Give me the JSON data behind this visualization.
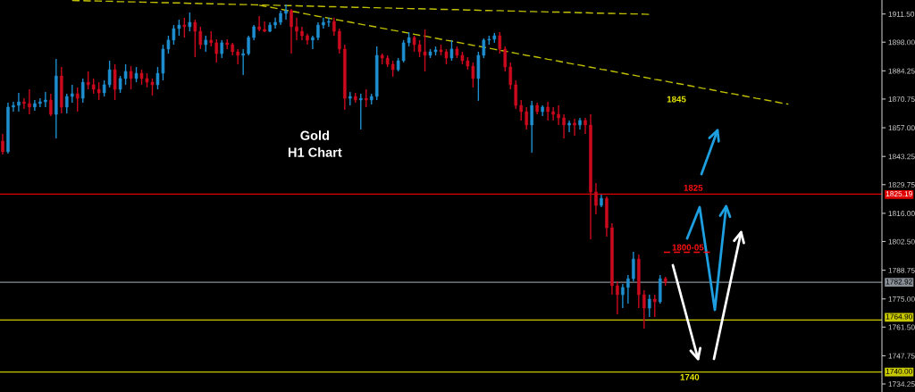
{
  "chart_data": {
    "type": "candlestick",
    "title": "Gold\nH1 Chart",
    "categories": [
      null,
      null,
      null,
      null,
      null,
      null,
      null,
      null,
      null,
      null,
      null,
      null,
      null,
      null,
      null,
      null,
      null,
      null,
      null,
      null,
      null,
      null,
      null,
      null,
      null,
      null,
      null,
      null,
      null,
      null,
      null,
      null,
      null,
      null,
      null,
      null,
      null,
      null,
      null,
      null,
      null,
      null,
      null,
      null,
      null,
      null,
      null,
      null,
      null,
      null,
      null,
      null,
      null,
      null,
      null,
      null,
      null,
      null,
      null,
      null,
      null,
      null,
      null,
      null,
      null,
      null,
      null,
      null,
      null,
      null,
      null,
      null,
      null,
      null,
      null,
      null,
      null,
      null,
      null,
      null,
      null,
      null,
      null,
      null,
      null,
      null,
      null,
      null,
      null,
      null,
      null,
      null,
      null,
      null,
      null,
      null,
      null,
      null,
      null,
      null,
      null,
      null,
      null,
      null,
      null,
      null,
      null,
      null,
      null,
      null,
      null,
      null,
      null,
      null,
      null,
      null,
      null,
      null,
      null,
      null,
      null,
      null,
      null,
      null,
      null,
      null,
      null,
      null,
      null,
      null,
      null,
      null,
      null,
      null,
      null,
      null,
      null,
      null,
      null,
      null,
      null,
      null,
      null,
      null,
      null,
      null,
      null,
      null,
      null,
      null,
      null,
      null,
      null,
      null,
      null,
      null,
      null,
      null,
      null,
      null,
      null,
      null,
      null,
      null,
      null
    ],
    "ohlc": [
      [
        1850.6,
        1854.0,
        1844.2,
        1845.5
      ],
      [
        1845.5,
        1869.0,
        1844.6,
        1866.9
      ],
      [
        1866.9,
        1869.4,
        1864.7,
        1867.7
      ],
      [
        1867.7,
        1873.7,
        1864.7,
        1869.4
      ],
      [
        1869.4,
        1871.1,
        1866.0,
        1868.6
      ],
      [
        1868.6,
        1875.4,
        1863.4,
        1866.9
      ],
      [
        1866.9,
        1870.3,
        1865.2,
        1868.6
      ],
      [
        1868.6,
        1871.1,
        1866.9,
        1869.4
      ],
      [
        1869.4,
        1874.1,
        1866.9,
        1870.3
      ],
      [
        1870.3,
        1873.3,
        1862.6,
        1863.4
      ],
      [
        1863.4,
        1890.0,
        1851.9,
        1881.8
      ],
      [
        1881.8,
        1886.1,
        1863.9,
        1866.9
      ],
      [
        1866.9,
        1873.3,
        1863.9,
        1872.0
      ],
      [
        1872.0,
        1877.6,
        1869.0,
        1873.3
      ],
      [
        1873.3,
        1876.3,
        1864.7,
        1871.1
      ],
      [
        1871.1,
        1880.6,
        1869.0,
        1878.8
      ],
      [
        1878.8,
        1884.0,
        1875.4,
        1877.6
      ],
      [
        1877.6,
        1880.6,
        1873.3,
        1875.4
      ],
      [
        1875.4,
        1878.8,
        1870.3,
        1873.7
      ],
      [
        1873.7,
        1879.7,
        1872.0,
        1877.6
      ],
      [
        1877.6,
        1889.1,
        1876.3,
        1884.8
      ],
      [
        1884.8,
        1887.4,
        1870.3,
        1875.4
      ],
      [
        1875.4,
        1881.8,
        1873.7,
        1880.6
      ],
      [
        1880.6,
        1887.4,
        1877.6,
        1884.0
      ],
      [
        1884.0,
        1886.5,
        1875.4,
        1880.6
      ],
      [
        1880.6,
        1886.1,
        1878.8,
        1883.1
      ],
      [
        1883.1,
        1884.8,
        1877.6,
        1880.6
      ],
      [
        1880.6,
        1883.1,
        1876.3,
        1878.8
      ],
      [
        1878.8,
        1880.6,
        1872.4,
        1877.6
      ],
      [
        1877.6,
        1886.1,
        1875.4,
        1883.1
      ],
      [
        1883.1,
        1896.8,
        1879.7,
        1894.7
      ],
      [
        1894.7,
        1901.1,
        1892.5,
        1899.0
      ],
      [
        1899.0,
        1906.2,
        1896.8,
        1904.5
      ],
      [
        1904.5,
        1908.8,
        1901.1,
        1906.2
      ],
      [
        1906.2,
        1909.7,
        1900.2,
        1905.4
      ],
      [
        1905.4,
        1912.2,
        1903.2,
        1907.5
      ],
      [
        1907.5,
        1908.8,
        1890.8,
        1903.2
      ],
      [
        1903.2,
        1905.4,
        1894.7,
        1896.8
      ],
      [
        1896.8,
        1901.1,
        1893.4,
        1899.0
      ],
      [
        1899.0,
        1903.2,
        1896.0,
        1897.7
      ],
      [
        1897.7,
        1899.4,
        1888.3,
        1892.5
      ],
      [
        1892.5,
        1899.0,
        1890.4,
        1897.7
      ],
      [
        1897.7,
        1899.4,
        1894.7,
        1896.8
      ],
      [
        1896.8,
        1897.7,
        1891.7,
        1893.4
      ],
      [
        1893.4,
        1894.7,
        1887.4,
        1891.7
      ],
      [
        1891.7,
        1894.7,
        1882.3,
        1892.5
      ],
      [
        1892.5,
        1901.1,
        1891.7,
        1900.2
      ],
      [
        1900.2,
        1906.2,
        1899.0,
        1905.4
      ],
      [
        1905.4,
        1910.5,
        1903.2,
        1904.1
      ],
      [
        1904.1,
        1907.9,
        1902.8,
        1903.2
      ],
      [
        1903.2,
        1907.5,
        1902.8,
        1906.2
      ],
      [
        1906.2,
        1909.7,
        1904.5,
        1907.5
      ],
      [
        1907.5,
        1913.1,
        1906.2,
        1911.8
      ],
      [
        1911.8,
        1916.1,
        1908.8,
        1913.1
      ],
      [
        1913.1,
        1913.9,
        1892.5,
        1905.4
      ],
      [
        1905.4,
        1909.7,
        1899.0,
        1903.2
      ],
      [
        1903.2,
        1905.4,
        1899.0,
        1901.1
      ],
      [
        1901.1,
        1902.0,
        1896.8,
        1899.0
      ],
      [
        1899.0,
        1901.1,
        1894.7,
        1900.2
      ],
      [
        1900.2,
        1907.5,
        1899.0,
        1906.2
      ],
      [
        1906.2,
        1909.7,
        1904.5,
        1907.5
      ],
      [
        1907.5,
        1909.7,
        1905.4,
        1907.9
      ],
      [
        1907.9,
        1909.7,
        1901.1,
        1903.2
      ],
      [
        1903.2,
        1904.5,
        1892.5,
        1894.7
      ],
      [
        1894.7,
        1896.8,
        1865.6,
        1871.1
      ],
      [
        1871.1,
        1874.1,
        1867.7,
        1872.0
      ],
      [
        1872.0,
        1873.7,
        1869.0,
        1870.3
      ],
      [
        1870.3,
        1873.3,
        1856.2,
        1871.1
      ],
      [
        1871.1,
        1875.4,
        1866.9,
        1870.3
      ],
      [
        1870.3,
        1873.3,
        1868.2,
        1872.0
      ],
      [
        1872.0,
        1896.0,
        1870.3,
        1891.7
      ],
      [
        1891.7,
        1892.5,
        1887.4,
        1890.4
      ],
      [
        1890.4,
        1891.7,
        1886.1,
        1887.4
      ],
      [
        1887.4,
        1889.1,
        1881.4,
        1884.8
      ],
      [
        1884.8,
        1890.4,
        1884.0,
        1889.1
      ],
      [
        1889.1,
        1899.0,
        1888.3,
        1897.7
      ],
      [
        1897.7,
        1902.8,
        1896.0,
        1900.2
      ],
      [
        1900.2,
        1901.1,
        1893.4,
        1896.8
      ],
      [
        1896.8,
        1899.0,
        1890.8,
        1893.4
      ],
      [
        1893.4,
        1904.1,
        1884.0,
        1891.7
      ],
      [
        1891.7,
        1894.7,
        1890.4,
        1893.4
      ],
      [
        1893.4,
        1896.0,
        1891.7,
        1894.3
      ],
      [
        1894.3,
        1896.8,
        1891.7,
        1893.4
      ],
      [
        1893.4,
        1894.7,
        1887.4,
        1890.4
      ],
      [
        1890.4,
        1899.0,
        1889.1,
        1894.7
      ],
      [
        1894.7,
        1896.0,
        1890.4,
        1891.7
      ],
      [
        1891.7,
        1893.4,
        1887.4,
        1889.1
      ],
      [
        1889.1,
        1890.8,
        1884.8,
        1886.5
      ],
      [
        1886.5,
        1888.3,
        1876.3,
        1880.6
      ],
      [
        1880.6,
        1893.4,
        1869.9,
        1891.7
      ],
      [
        1891.7,
        1899.8,
        1890.4,
        1899.0
      ],
      [
        1899.0,
        1901.1,
        1896.8,
        1899.4
      ],
      [
        1899.4,
        1902.4,
        1897.7,
        1901.1
      ],
      [
        1901.1,
        1902.8,
        1892.5,
        1894.7
      ],
      [
        1894.7,
        1896.0,
        1884.0,
        1886.1
      ],
      [
        1886.1,
        1888.3,
        1875.4,
        1877.6
      ],
      [
        1877.6,
        1879.7,
        1866.0,
        1867.7
      ],
      [
        1867.7,
        1870.3,
        1860.5,
        1864.7
      ],
      [
        1864.7,
        1866.9,
        1856.2,
        1858.3
      ],
      [
        1858.3,
        1869.9,
        1845.1,
        1867.7
      ],
      [
        1867.7,
        1869.0,
        1863.4,
        1864.7
      ],
      [
        1864.7,
        1867.7,
        1862.6,
        1866.9
      ],
      [
        1866.9,
        1869.4,
        1860.5,
        1864.7
      ],
      [
        1864.7,
        1866.9,
        1860.5,
        1863.4
      ],
      [
        1863.4,
        1867.7,
        1858.3,
        1861.7
      ],
      [
        1861.7,
        1863.4,
        1851.9,
        1858.3
      ],
      [
        1858.3,
        1860.5,
        1854.9,
        1859.2
      ],
      [
        1859.2,
        1861.3,
        1853.2,
        1858.3
      ],
      [
        1858.3,
        1861.7,
        1856.2,
        1860.5
      ],
      [
        1860.5,
        1861.7,
        1854.0,
        1858.3
      ],
      [
        1858.3,
        1863.4,
        1803.6,
        1826.2
      ],
      [
        1826.2,
        1830.5,
        1815.5,
        1819.8
      ],
      [
        1819.8,
        1824.9,
        1819.0,
        1823.2
      ],
      [
        1823.2,
        1824.1,
        1804.8,
        1809.1
      ],
      [
        1809.1,
        1811.3,
        1777.0,
        1781.3
      ],
      [
        1781.3,
        1783.4,
        1767.6,
        1777.0
      ],
      [
        1777.0,
        1782.2,
        1770.6,
        1780.5
      ],
      [
        1780.5,
        1786.4,
        1772.8,
        1784.7
      ],
      [
        1784.7,
        1797.6,
        1783.4,
        1794.1
      ],
      [
        1794.1,
        1796.3,
        1770.6,
        1777.0
      ],
      [
        1777.0,
        1779.2,
        1760.8,
        1770.6
      ],
      [
        1770.6,
        1777.0,
        1766.3,
        1774.9
      ],
      [
        1774.9,
        1777.0,
        1766.3,
        1773.6
      ],
      [
        1773.6,
        1786.4,
        1772.8,
        1784.7
      ],
      [
        1784.7,
        1785.6,
        1781.3,
        1783.0
      ],
      null,
      null,
      null,
      null,
      null,
      null,
      null,
      null,
      null,
      null,
      null,
      null,
      null,
      null,
      null,
      null,
      null,
      null,
      null,
      null,
      null,
      null,
      null,
      null,
      null,
      null,
      null,
      null,
      null,
      null,
      null,
      null,
      null,
      null,
      null,
      null,
      null,
      null,
      null,
      null
    ],
    "colors": [
      "#cc0a1e",
      "#1e8fd0",
      "#1e8fd0",
      "#1e8fd0",
      "#cc0a1e",
      "#cc0a1e",
      "#1e8fd0",
      "#1e8fd0",
      "#1e8fd0",
      "#cc0a1e",
      "#1e8fd0",
      "#cc0a1e",
      "#1e8fd0",
      "#1e8fd0",
      "#cc0a1e",
      "#1e8fd0",
      "#cc0a1e",
      "#cc0a1e",
      "#cc0a1e",
      "#1e8fd0",
      "#1e8fd0",
      "#cc0a1e",
      "#1e8fd0",
      "#1e8fd0",
      "#cc0a1e",
      "#1e8fd0",
      "#cc0a1e",
      "#cc0a1e",
      "#cc0a1e",
      "#1e8fd0",
      "#1e8fd0",
      "#1e8fd0",
      "#1e8fd0",
      "#1e8fd0",
      "#cc0a1e",
      "#1e8fd0",
      "#cc0a1e",
      "#cc0a1e",
      "#1e8fd0",
      "#cc0a1e",
      "#cc0a1e",
      "#1e8fd0",
      "#cc0a1e",
      "#cc0a1e",
      "#cc0a1e",
      "#1e8fd0",
      "#1e8fd0",
      "#1e8fd0",
      "#cc0a1e",
      "#cc0a1e",
      "#1e8fd0",
      "#1e8fd0",
      "#1e8fd0",
      "#1e8fd0",
      "#cc0a1e",
      "#cc0a1e",
      "#cc0a1e",
      "#cc0a1e",
      "#1e8fd0",
      "#1e8fd0",
      "#1e8fd0",
      "#1e8fd0",
      "#cc0a1e",
      "#cc0a1e",
      "#cc0a1e",
      "#1e8fd0",
      "#cc0a1e",
      "#1e8fd0",
      "#cc0a1e",
      "#1e8fd0",
      "#1e8fd0",
      "#cc0a1e",
      "#cc0a1e",
      "#cc0a1e",
      "#1e8fd0",
      "#1e8fd0",
      "#1e8fd0",
      "#cc0a1e",
      "#cc0a1e",
      "#cc0a1e",
      "#1e8fd0",
      "#1e8fd0",
      "#cc0a1e",
      "#cc0a1e",
      "#1e8fd0",
      "#cc0a1e",
      "#cc0a1e",
      "#cc0a1e",
      "#cc0a1e",
      "#1e8fd0",
      "#1e8fd0",
      "#1e8fd0",
      "#1e8fd0",
      "#cc0a1e",
      "#cc0a1e",
      "#cc0a1e",
      "#cc0a1e",
      "#cc0a1e",
      "#cc0a1e",
      "#1e8fd0",
      "#cc0a1e",
      "#1e8fd0",
      "#cc0a1e",
      "#cc0a1e",
      "#cc0a1e",
      "#cc0a1e",
      "#1e8fd0",
      "#cc0a1e",
      "#1e8fd0",
      "#cc0a1e",
      "#cc0a1e",
      "#cc0a1e",
      "#1e8fd0",
      "#cc0a1e",
      "#cc0a1e",
      "#cc0a1e",
      "#1e8fd0",
      "#1e8fd0",
      "#1e8fd0",
      "#cc0a1e",
      "#cc0a1e",
      "#1e8fd0",
      "#cc0a1e",
      "#1e8fd0",
      "#cc0a1e",
      null,
      null,
      null,
      null,
      null,
      null,
      null,
      null,
      null,
      null,
      null,
      null,
      null,
      null,
      null,
      null,
      null,
      null,
      null,
      null,
      null,
      null,
      null,
      null,
      null,
      null,
      null,
      null,
      null,
      null,
      null,
      null,
      null,
      null,
      null,
      null,
      null,
      null,
      null,
      null
    ],
    "series": [
      {
        "type": "line",
        "color": "#c0c000",
        "line_style": "dashed",
        "values": [
          null,
          null,
          null,
          null,
          null,
          null,
          null,
          null,
          null,
          null,
          null,
          null,
          null,
          1918.0,
          1917.9,
          1917.9,
          1917.8,
          1917.8,
          1917.7,
          1917.6,
          1917.6,
          1917.5,
          1917.4,
          1917.4,
          1917.3,
          1917.3,
          1917.2,
          1917.1,
          1917.1,
          1917.0,
          1916.9,
          1916.9,
          1916.8,
          1916.8,
          1916.7,
          1916.6,
          1916.6,
          1916.5,
          1916.5,
          1916.4,
          1916.3,
          1916.3,
          1916.2,
          1916.1,
          1916.1,
          1916.0,
          1916.0,
          1915.9,
          1915.8,
          1915.8,
          1915.7,
          1915.7,
          1915.6,
          1915.5,
          1915.5,
          1915.4,
          1915.3,
          1915.3,
          1915.2,
          1915.2,
          1915.1,
          1915.0,
          1915.0,
          1914.9,
          1914.8,
          1914.8,
          1914.7,
          1914.7,
          1914.6,
          1914.5,
          1914.5,
          1914.4,
          1914.4,
          1914.3,
          1914.2,
          1914.2,
          1914.1,
          1914.0,
          1914.0,
          1913.9,
          1913.9,
          1913.8,
          1913.7,
          1913.7,
          1913.6,
          1913.6,
          1913.5,
          1913.4,
          1913.4,
          1913.3,
          1913.2,
          1913.2,
          1913.1,
          1913.1,
          1913.0,
          1912.9,
          1912.9,
          1912.8,
          1912.7,
          1912.7,
          1912.6,
          1912.6,
          1912.5,
          1912.4,
          1912.4,
          1912.3,
          1912.3,
          1912.2,
          1912.1,
          1912.1,
          1912.0,
          1911.9,
          1911.9,
          1911.8,
          1911.8,
          1911.7,
          1911.6,
          1911.6,
          1911.5,
          1911.5,
          1911.4,
          1911.3,
          null,
          null,
          null,
          null,
          null,
          null,
          null,
          null,
          null,
          null,
          null,
          null,
          null,
          null,
          null,
          null,
          null,
          null,
          null,
          null,
          null,
          null,
          null,
          null,
          null,
          null,
          null,
          null,
          null,
          null,
          null,
          null,
          null,
          null,
          null,
          null,
          null,
          null,
          null,
          null,
          null,
          null,
          null
        ]
      },
      {
        "type": "line",
        "color": "#c0c000",
        "line_style": "dashed",
        "values": [
          null,
          null,
          null,
          null,
          null,
          null,
          null,
          null,
          null,
          null,
          null,
          null,
          null,
          null,
          null,
          null,
          null,
          null,
          null,
          null,
          null,
          null,
          null,
          null,
          null,
          null,
          null,
          null,
          null,
          null,
          null,
          null,
          null,
          null,
          null,
          null,
          null,
          null,
          null,
          null,
          null,
          null,
          null,
          null,
          null,
          null,
          null,
          null,
          1915.7,
          1915.2,
          1914.8,
          1914.3,
          1913.8,
          1913.3,
          1912.8,
          1912.4,
          1911.9,
          1911.4,
          1910.9,
          1910.4,
          1910.0,
          1909.5,
          1909.0,
          1908.5,
          1908.0,
          1907.6,
          1907.1,
          1906.6,
          1906.1,
          1905.7,
          1905.2,
          1904.7,
          1904.2,
          1903.7,
          1903.3,
          1902.8,
          1902.3,
          1901.8,
          1901.3,
          1900.9,
          1900.4,
          1899.9,
          1899.4,
          1898.9,
          1898.5,
          1898.0,
          1897.5,
          1897.0,
          1896.5,
          1896.1,
          1895.6,
          1895.1,
          1894.6,
          1894.1,
          1893.7,
          1893.2,
          1892.7,
          1892.2,
          1891.7,
          1891.3,
          1890.8,
          1890.3,
          1889.8,
          1889.4,
          1888.9,
          1888.4,
          1887.9,
          1887.4,
          1887.0,
          1886.5,
          1886.0,
          1885.5,
          1885.0,
          1884.6,
          1884.1,
          1883.6,
          1883.1,
          1882.6,
          1882.2,
          1881.7,
          1881.2,
          1880.7,
          1880.2,
          1879.8,
          1879.3,
          1878.8,
          1878.3,
          1877.9,
          1877.4,
          1876.9,
          1876.4,
          1875.9,
          1875.5,
          1875.0,
          1874.5,
          1874.0,
          1873.5,
          1873.1,
          1872.6,
          1872.1,
          1871.6,
          1871.1,
          1870.7,
          1870.2,
          1869.7,
          1869.2,
          1868.7,
          1868.3,
          null,
          null,
          null,
          null,
          null,
          null,
          null,
          null,
          null,
          null,
          null,
          null,
          null,
          null,
          null,
          null,
          null
        ]
      }
    ],
    "ylim": [
      1730.4,
      1918.2
    ],
    "yticks": [
      {
        "value": 1911.5,
        "label": "1911.50"
      },
      {
        "value": 1898.0,
        "label": "1898.00"
      },
      {
        "value": 1884.25,
        "label": "1884.25"
      },
      {
        "value": 1870.75,
        "label": "1870.75"
      },
      {
        "value": 1857.0,
        "label": "1857.00"
      },
      {
        "value": 1843.25,
        "label": "1843.25"
      },
      {
        "value": 1829.75,
        "label": "1829.75"
      },
      {
        "value": 1816.0,
        "label": "1816.00"
      },
      {
        "value": 1802.5,
        "label": "1802.50"
      },
      {
        "value": 1788.75,
        "label": "1788.75"
      },
      {
        "value": 1775.0,
        "label": "1775.00"
      },
      {
        "value": 1761.5,
        "label": "1761.50"
      },
      {
        "value": 1747.75,
        "label": "1747.75"
      },
      {
        "value": 1734.25,
        "label": "1734.25"
      }
    ],
    "tick_labels": "y",
    "ref_lines": [
      {
        "axis": "y",
        "value": 1825.19,
        "label": "1825.19",
        "color": "#e00000"
      },
      {
        "axis": "y",
        "value": 1782.92,
        "label": "1782.92",
        "color": "#8a9098"
      },
      {
        "axis": "y",
        "value": 1764.9,
        "label": "1764.90",
        "color": "#c8c800"
      },
      {
        "axis": "y",
        "value": 1740.0,
        "label": "1740.00",
        "color": "#c8c800"
      }
    ],
    "annotations": [
      "1845",
      "1825",
      "1800-05",
      "1740"
    ]
  }
}
